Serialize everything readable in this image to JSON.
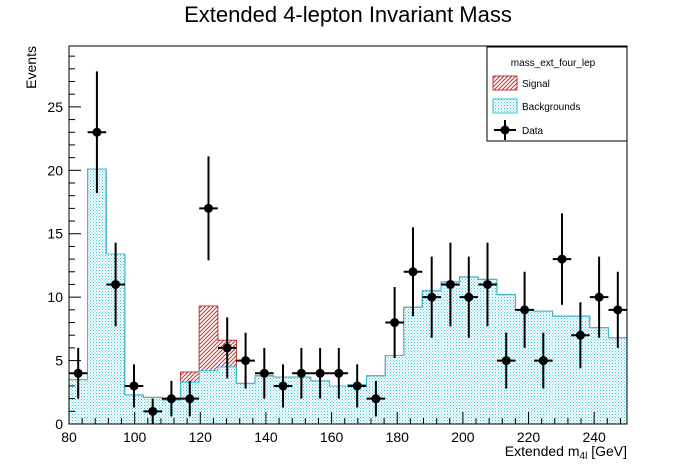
{
  "chart_data": {
    "type": "bar",
    "title": "Extended 4-lepton Invariant Mass",
    "xlabel": "Extended m",
    "xlabel_sub": "4l",
    "xlabel_unit": " [GeV]",
    "ylabel": "Events",
    "xlim": [
      80,
      250
    ],
    "ylim": [
      0,
      29.8
    ],
    "x_ticks": [
      80,
      100,
      120,
      140,
      160,
      180,
      200,
      220,
      240
    ],
    "y_ticks": [
      0,
      5,
      10,
      15,
      20,
      25
    ],
    "bin_width": 5.667,
    "bin_centers": [
      82.8,
      88.5,
      94.2,
      99.8,
      105.5,
      111.2,
      116.8,
      122.5,
      128.2,
      133.8,
      139.5,
      145.2,
      150.8,
      156.5,
      162.2,
      167.8,
      173.5,
      179.2,
      184.8,
      190.5,
      196.2,
      201.8,
      207.5,
      213.2,
      218.8,
      224.5,
      230.2,
      235.8,
      241.5,
      247.2
    ],
    "series": [
      {
        "name": "Backgrounds",
        "color": "#2ec4dc",
        "values": [
          3.5,
          20.1,
          13.4,
          2.3,
          2.1,
          1.9,
          3.3,
          4.2,
          4.5,
          3.2,
          3.8,
          3.7,
          3.7,
          3.4,
          3.0,
          3.1,
          3.8,
          5.4,
          9.2,
          10.5,
          11.2,
          11.6,
          11.4,
          10.2,
          9.0,
          8.9,
          8.5,
          8.5,
          7.6,
          6.8
        ]
      },
      {
        "name": "Signal",
        "color": "#c83232",
        "values": [
          0,
          0,
          0,
          0,
          0,
          0,
          0.8,
          5.1,
          2.1,
          0,
          0,
          0,
          0,
          0,
          0,
          0,
          0,
          0,
          0,
          0,
          0,
          0,
          0,
          0,
          0,
          0,
          0,
          0,
          0,
          0
        ]
      },
      {
        "name": "Data",
        "color": "#000000",
        "values": [
          4,
          23,
          11,
          3,
          1,
          2,
          2,
          17,
          6,
          5,
          4,
          3,
          4,
          4,
          4,
          3,
          2,
          8,
          12,
          10,
          11,
          10,
          11,
          5,
          9,
          5,
          13,
          7,
          10,
          9
        ],
        "errors": [
          2.0,
          4.8,
          3.3,
          1.7,
          1.0,
          1.4,
          1.4,
          4.1,
          2.4,
          2.2,
          2.0,
          1.7,
          2.0,
          2.0,
          2.0,
          1.7,
          1.4,
          2.8,
          3.5,
          3.2,
          3.3,
          3.2,
          3.3,
          2.2,
          3.0,
          2.2,
          3.6,
          2.6,
          3.2,
          3.0
        ]
      }
    ],
    "legend": {
      "title": "mass_ext_four_lep",
      "position": "top-right",
      "entries": [
        "Signal",
        "Backgrounds",
        "Data"
      ]
    }
  }
}
